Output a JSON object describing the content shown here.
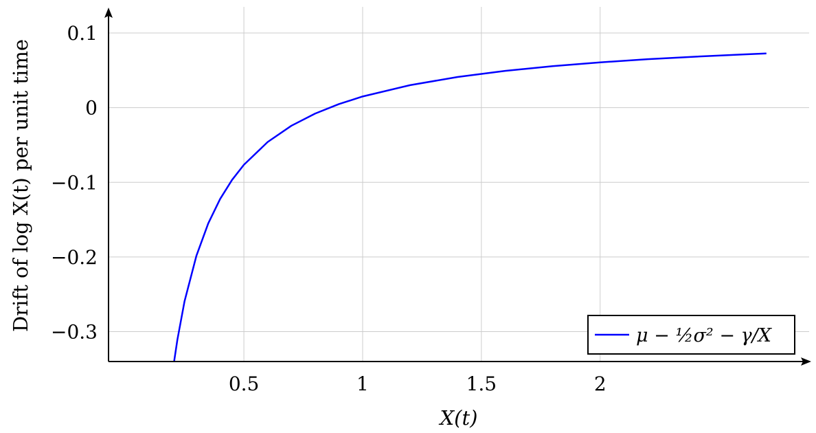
{
  "chart_data": {
    "type": "line",
    "xlabel": "X(t)",
    "ylabel": "Drift of log X(t) per unit time",
    "xlim": [
      -0.07,
      2.88
    ],
    "ylim": [
      -0.34,
      0.135
    ],
    "x_ticks": [
      {
        "value": 0.5,
        "label": "0.5"
      },
      {
        "value": 1,
        "label": "1"
      },
      {
        "value": 1.5,
        "label": "1.5"
      },
      {
        "value": 2,
        "label": "2"
      }
    ],
    "y_ticks": [
      {
        "value": 0.1,
        "label": "0.1"
      },
      {
        "value": 0,
        "label": "0"
      },
      {
        "value": -0.1,
        "label": "−0.1"
      },
      {
        "value": -0.2,
        "label": "−0.2"
      },
      {
        "value": -0.3,
        "label": "−0.3"
      }
    ],
    "grid": true,
    "legend_position": "bottom-right",
    "series": [
      {
        "name": "μ − ½σ² − γ/X",
        "color": "#0000ff",
        "x": [
          0.206,
          0.22,
          0.25,
          0.3,
          0.35,
          0.4,
          0.45,
          0.5,
          0.6,
          0.7,
          0.8,
          0.9,
          1.0,
          1.2,
          1.4,
          1.6,
          1.8,
          2.0,
          2.2,
          2.4,
          2.6,
          2.7
        ],
        "y": [
          -0.3403,
          -0.3107,
          -0.2594,
          -0.1984,
          -0.1549,
          -0.1222,
          -0.0968,
          -0.0765,
          -0.046,
          -0.0242,
          -0.0079,
          0.0048,
          0.015,
          0.0302,
          0.0411,
          0.0493,
          0.0556,
          0.0607,
          0.0649,
          0.0683,
          0.0713,
          0.0726
        ]
      }
    ]
  }
}
